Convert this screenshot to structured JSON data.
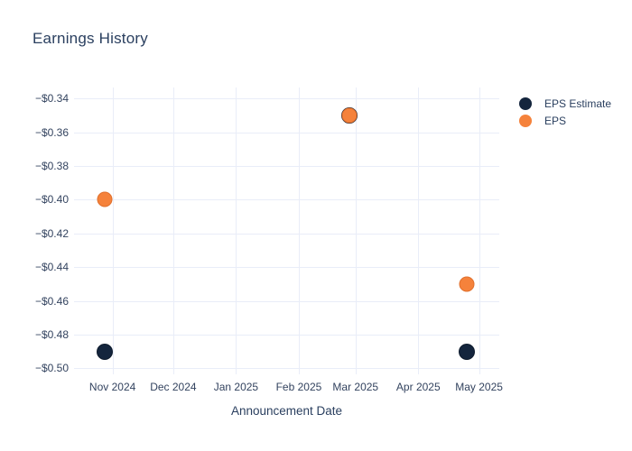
{
  "colors": {
    "background": "#ffffff",
    "plot_background": "#ffffff",
    "grid": "#e9edf8",
    "title": "#2a3f5f",
    "tick_label": "#33435f",
    "axis_title": "#2a3f5f",
    "legend_label": "#2a3f5f"
  },
  "chart_data": {
    "type": "scatter",
    "title": "Earnings History",
    "xlabel": "Announcement Date",
    "ylabel": "",
    "grid": true,
    "legend_position": "outside-right-top",
    "x_range": [
      "2024-10-13",
      "2025-05-11"
    ],
    "y_range": [
      -0.5035,
      -0.3335
    ],
    "x_ticks": [
      {
        "date": "2024-11-01",
        "label": "Nov 2024"
      },
      {
        "date": "2024-12-01",
        "label": "Dec 2024"
      },
      {
        "date": "2025-01-01",
        "label": "Jan 2025"
      },
      {
        "date": "2025-02-01",
        "label": "Feb 2025"
      },
      {
        "date": "2025-03-01",
        "label": "Mar 2025"
      },
      {
        "date": "2025-04-01",
        "label": "Apr 2025"
      },
      {
        "date": "2025-05-01",
        "label": "May 2025"
      }
    ],
    "y_ticks": [
      {
        "value": -0.34,
        "label": "−$0.34"
      },
      {
        "value": -0.36,
        "label": "−$0.36"
      },
      {
        "value": -0.38,
        "label": "−$0.38"
      },
      {
        "value": -0.4,
        "label": "−$0.40"
      },
      {
        "value": -0.42,
        "label": "−$0.42"
      },
      {
        "value": -0.44,
        "label": "−$0.44"
      },
      {
        "value": -0.46,
        "label": "−$0.46"
      },
      {
        "value": -0.48,
        "label": "−$0.48"
      },
      {
        "value": -0.5,
        "label": "−$0.50"
      }
    ],
    "series": [
      {
        "name": "EPS Estimate",
        "color": "#14253d",
        "outline": "#0d1a2c",
        "marker_size": 18,
        "points": [
          {
            "x": "2024-10-28",
            "y": -0.49
          },
          {
            "x": "2025-02-26",
            "y": -0.35
          },
          {
            "x": "2025-04-25",
            "y": -0.49
          }
        ]
      },
      {
        "name": "EPS",
        "color": "#f5823b",
        "outline": "#e0702d",
        "marker_size": 17,
        "points": [
          {
            "x": "2024-10-28",
            "y": -0.4
          },
          {
            "x": "2025-02-26",
            "y": -0.35
          },
          {
            "x": "2025-04-25",
            "y": -0.45
          }
        ]
      }
    ]
  }
}
